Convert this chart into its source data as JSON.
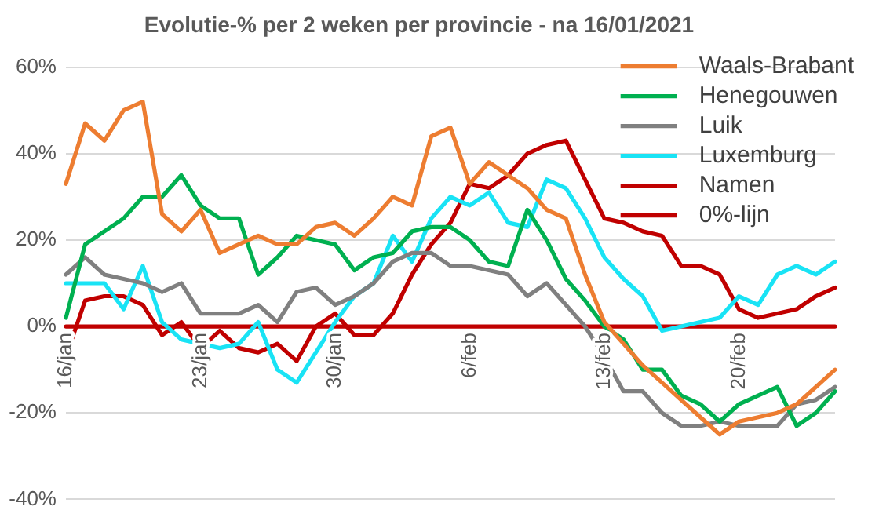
{
  "chart_data": {
    "type": "line",
    "title": "Evolutie-% per 2 weken per provincie - na 16/01/2021",
    "categories": [
      "16/jan",
      null,
      null,
      null,
      null,
      null,
      null,
      "23/jan",
      null,
      null,
      null,
      null,
      null,
      null,
      "30/jan",
      null,
      null,
      null,
      null,
      null,
      null,
      "6/feb",
      null,
      null,
      null,
      null,
      null,
      null,
      "13/feb",
      null,
      null,
      null,
      null,
      null,
      null,
      "20/feb",
      null,
      null,
      null,
      null,
      null
    ],
    "series": [
      {
        "name": "Waals-Brabant",
        "color": "#ed7d31",
        "values": [
          33,
          47,
          43,
          50,
          52,
          26,
          22,
          27,
          17,
          19,
          21,
          19,
          19,
          23,
          24,
          21,
          25,
          30,
          28,
          44,
          46,
          33,
          38,
          35,
          32,
          27,
          25,
          12,
          1,
          -4,
          -9,
          -13,
          -17,
          -21,
          -25,
          -22,
          -21,
          -20,
          -18,
          -14,
          -10
        ]
      },
      {
        "name": "Henegouwen",
        "color": "#00b050",
        "values": [
          2,
          19,
          22,
          25,
          30,
          30,
          35,
          28,
          25,
          25,
          12,
          16,
          21,
          20,
          19,
          13,
          16,
          17,
          22,
          23,
          23,
          20,
          15,
          14,
          27,
          20,
          11,
          6,
          0,
          -3,
          -10,
          -10,
          -16,
          -18,
          -22,
          -18,
          -16,
          -14,
          -23,
          -20,
          -15
        ]
      },
      {
        "name": "Luik",
        "color": "#808080",
        "values": [
          12,
          16,
          12,
          11,
          10,
          8,
          10,
          3,
          3,
          3,
          5,
          1,
          8,
          9,
          5,
          7,
          10,
          15,
          17,
          17,
          14,
          14,
          13,
          12,
          7,
          10,
          5,
          0,
          -7,
          -15,
          -15,
          -20,
          -23,
          -23,
          -22,
          -23,
          -23,
          -23,
          -18,
          -17,
          -14
        ]
      },
      {
        "name": "Luxemburg",
        "color": "#19e3f5",
        "values": [
          10,
          10,
          10,
          4,
          14,
          1,
          -3,
          -4,
          -5,
          -4,
          1,
          -10,
          -13,
          -6,
          1,
          7,
          10,
          21,
          15,
          25,
          30,
          28,
          31,
          24,
          23,
          34,
          32,
          25,
          16,
          11,
          7,
          -1,
          0,
          1,
          2,
          7,
          5,
          12,
          14,
          12,
          15
        ]
      },
      {
        "name": "Namen",
        "color": "#c00000",
        "values": [
          -7,
          6,
          7,
          7,
          5,
          -2,
          1,
          -5,
          -1,
          -5,
          -6,
          -4,
          -8,
          0,
          3,
          -2,
          -2,
          3,
          12,
          19,
          24,
          33,
          32,
          35,
          40,
          42,
          43,
          34,
          25,
          24,
          22,
          21,
          14,
          14,
          12,
          4,
          2,
          3,
          4,
          7,
          9
        ]
      },
      {
        "name": "0%-lijn",
        "color": "#c00000",
        "values": [
          0,
          0,
          0,
          0,
          0,
          0,
          0,
          0,
          0,
          0,
          0,
          0,
          0,
          0,
          0,
          0,
          0,
          0,
          0,
          0,
          0,
          0,
          0,
          0,
          0,
          0,
          0,
          0,
          0,
          0,
          0,
          0,
          0,
          0,
          0,
          0,
          0,
          0,
          0,
          0,
          0
        ]
      }
    ],
    "ylim": [
      -40,
      60
    ],
    "yticks": [
      {
        "value": -40,
        "label": "-40%"
      },
      {
        "value": -20,
        "label": "-20%"
      },
      {
        "value": 0,
        "label": "0%"
      },
      {
        "value": 20,
        "label": "20%"
      },
      {
        "value": 40,
        "label": "40%"
      },
      {
        "value": 60,
        "label": "60%"
      }
    ],
    "grid": "y",
    "legend": "top right"
  }
}
